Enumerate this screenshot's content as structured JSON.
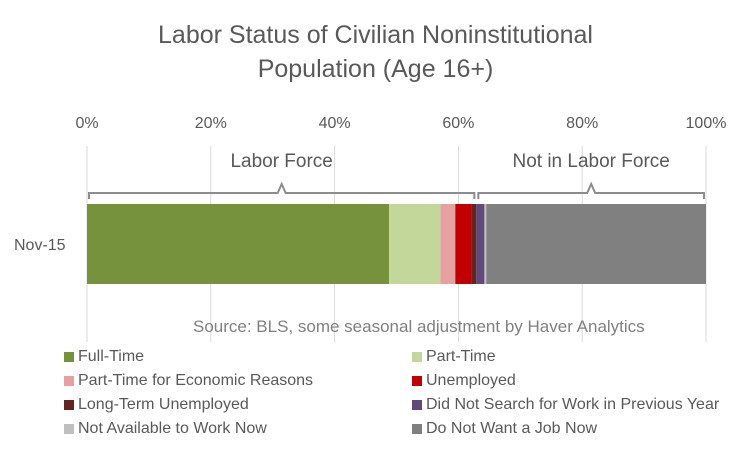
{
  "chart_data": {
    "type": "bar",
    "orientation": "horizontal",
    "stacked": "percent",
    "title_lines": [
      "Labor Status of Civilian Noninstitutional",
      "Population (Age 16+)"
    ],
    "categories": [
      "Nov-15"
    ],
    "x_ticks": [
      "0%",
      "20%",
      "40%",
      "60%",
      "80%",
      "100%"
    ],
    "xlim": [
      0,
      100
    ],
    "grid": "vertical",
    "series": [
      {
        "name": "Full-Time",
        "values": [
          48.8
        ],
        "color": "#76923c"
      },
      {
        "name": "Part-Time",
        "values": [
          8.3
        ],
        "color": "#c4d79b"
      },
      {
        "name": "Part-Time for Economic Reasons",
        "values": [
          2.4
        ],
        "color": "#e6a0a0"
      },
      {
        "name": "Unemployed",
        "values": [
          2.6
        ],
        "color": "#c00000"
      },
      {
        "name": "Long-Term Unemployed",
        "values": [
          0.8
        ],
        "color": "#632523"
      },
      {
        "name": "Did Not Search for Work in Previous Year",
        "values": [
          1.3
        ],
        "color": "#604a7b"
      },
      {
        "name": "Not Available to Work Now",
        "values": [
          0.3
        ],
        "color": "#bfbfbf"
      },
      {
        "name": "Do Not Want a Job Now",
        "values": [
          35.5
        ],
        "color": "#808080"
      }
    ],
    "brackets": [
      {
        "label": "Labor Force",
        "from": 0,
        "to": 62.9
      },
      {
        "label": "Not in Labor Force",
        "from": 62.9,
        "to": 100
      }
    ],
    "annotation": "Source: BLS, some seasonal adjustment by Haver Analytics",
    "legend_position": "bottom"
  }
}
